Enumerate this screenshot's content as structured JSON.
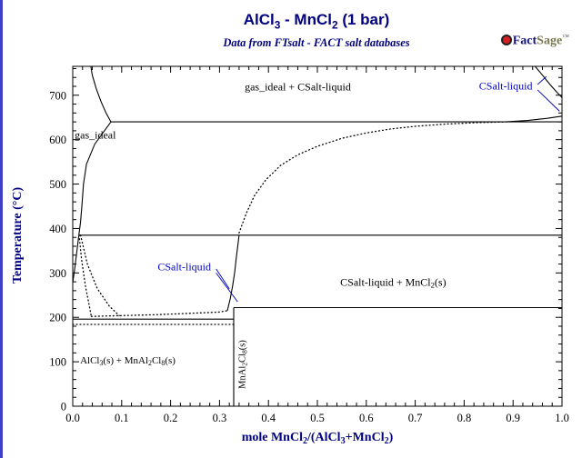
{
  "header": {
    "title_segments": [
      {
        "t": "AlCl"
      },
      {
        "t": "3",
        "sub": true
      },
      {
        "t": " - MnCl"
      },
      {
        "t": "2",
        "sub": true
      },
      {
        "t": " (1 bar)"
      }
    ],
    "title_plain": "AlCl3 - MnCl2 (1 bar)",
    "subtitle": "Data from FTsalt - FACT salt databases",
    "logo": {
      "fact": "Fact",
      "sage": "Sage",
      "tm": "™"
    }
  },
  "colors": {
    "heading": "#000080",
    "phase_label_blue": "#0000cc",
    "line": "#000000",
    "logo_red": "#d42020"
  },
  "chart_data": {
    "type": "line",
    "subtype": "phase-diagram",
    "title": "AlCl3 - MnCl2 (1 bar)",
    "subtitle": "Data from FTsalt - FACT salt databases",
    "xlabel": "mole MnCl2/(AlCl3+MnCl2)",
    "xlabel_segments": [
      {
        "t": "mole MnCl"
      },
      {
        "t": "2",
        "sub": true
      },
      {
        "t": "/(AlCl"
      },
      {
        "t": "3",
        "sub": true
      },
      {
        "t": "+MnCl"
      },
      {
        "t": "2",
        "sub": true
      },
      {
        "t": ")"
      }
    ],
    "ylabel": "Temperature (°C)",
    "xlim": [
      0,
      1
    ],
    "ylim": [
      0,
      765
    ],
    "x_ticks": [
      {
        "v": 0.0,
        "label": "0.0"
      },
      {
        "v": 0.1,
        "label": "0.1"
      },
      {
        "v": 0.2,
        "label": "0.2"
      },
      {
        "v": 0.3,
        "label": "0.3"
      },
      {
        "v": 0.4,
        "label": "0.4"
      },
      {
        "v": 0.5,
        "label": "0.5"
      },
      {
        "v": 0.6,
        "label": "0.6"
      },
      {
        "v": 0.7,
        "label": "0.7"
      },
      {
        "v": 0.8,
        "label": "0.8"
      },
      {
        "v": 0.9,
        "label": "0.9"
      },
      {
        "v": 1.0,
        "label": "1.0"
      }
    ],
    "x_minor_step": 0.02,
    "y_ticks": [
      {
        "v": 0,
        "label": "0"
      },
      {
        "v": 100,
        "label": "100"
      },
      {
        "v": 200,
        "label": "200"
      },
      {
        "v": 300,
        "label": "300"
      },
      {
        "v": 400,
        "label": "400"
      },
      {
        "v": 500,
        "label": "500"
      },
      {
        "v": 600,
        "label": "600"
      },
      {
        "v": 700,
        "label": "700"
      }
    ],
    "y_minor_step": 20,
    "invariant_temperatures_c": {
      "monotectic": 640,
      "transition": 385,
      "peritectic_mnal2cl8": 222,
      "eutectic": 196
    },
    "compound_composition_x": 0.329,
    "boundaries": [
      {
        "name": "monotectic-640",
        "style": "solid",
        "points": [
          [
            0.078,
            640
          ],
          [
            1.0,
            640
          ]
        ]
      },
      {
        "name": "isotherm-385",
        "style": "solid",
        "points": [
          [
            0.0125,
            385
          ],
          [
            1.0,
            385
          ]
        ]
      },
      {
        "name": "peritectic-222",
        "style": "solid",
        "points": [
          [
            0.329,
            222
          ],
          [
            1.0,
            222
          ]
        ]
      },
      {
        "name": "eutectic-196",
        "style": "solid",
        "points": [
          [
            0.0,
            196
          ],
          [
            0.329,
            196
          ]
        ]
      },
      {
        "name": "isotherm-184-dotted",
        "style": "dotted",
        "points": [
          [
            0.0,
            184
          ],
          [
            0.329,
            184
          ]
        ]
      },
      {
        "name": "mnal2cl8-vertical",
        "style": "solid",
        "points": [
          [
            0.329,
            0
          ],
          [
            0.329,
            222
          ]
        ]
      },
      {
        "name": "gas-boundary-upper",
        "style": "solid",
        "points": [
          [
            0.037,
            765
          ],
          [
            0.04,
            745
          ],
          [
            0.048,
            715
          ],
          [
            0.058,
            685
          ],
          [
            0.068,
            660
          ],
          [
            0.078,
            640
          ]
        ]
      },
      {
        "name": "gas-boundary-mid",
        "style": "solid",
        "points": [
          [
            0.078,
            640
          ],
          [
            0.045,
            590
          ],
          [
            0.028,
            545
          ],
          [
            0.022,
            500
          ],
          [
            0.019,
            455
          ],
          [
            0.016,
            415
          ],
          [
            0.0125,
            385
          ]
        ]
      },
      {
        "name": "gas-boundary-lower",
        "style": "solid",
        "points": [
          [
            0.0125,
            385
          ],
          [
            0.008,
            345
          ],
          [
            0.004,
            310
          ],
          [
            0.0,
            278
          ]
        ]
      },
      {
        "name": "lens-dotted-left",
        "style": "dotted",
        "points": [
          [
            0.013,
            385
          ],
          [
            0.018,
            330
          ],
          [
            0.026,
            270
          ],
          [
            0.034,
            225
          ],
          [
            0.038,
            202
          ]
        ]
      },
      {
        "name": "lens-dotted-right",
        "style": "dotted",
        "points": [
          [
            0.016,
            385
          ],
          [
            0.03,
            320
          ],
          [
            0.05,
            265
          ],
          [
            0.075,
            225
          ],
          [
            0.095,
            204
          ]
        ]
      },
      {
        "name": "liquidus-flat-dotted",
        "style": "dotted",
        "points": [
          [
            0.038,
            202
          ],
          [
            0.1,
            204
          ],
          [
            0.17,
            206
          ],
          [
            0.24,
            209
          ],
          [
            0.3,
            212
          ],
          [
            0.316,
            215
          ]
        ]
      },
      {
        "name": "liquidus-rise-solid",
        "style": "solid",
        "points": [
          [
            0.316,
            215
          ],
          [
            0.322,
            242
          ],
          [
            0.327,
            272
          ],
          [
            0.331,
            302
          ],
          [
            0.334,
            332
          ],
          [
            0.337,
            358
          ],
          [
            0.34,
            385
          ]
        ]
      },
      {
        "name": "liquidus-dotted-upper",
        "style": "dotted",
        "points": [
          [
            0.34,
            390
          ],
          [
            0.355,
            435
          ],
          [
            0.372,
            475
          ],
          [
            0.395,
            510
          ],
          [
            0.425,
            542
          ],
          [
            0.46,
            566
          ],
          [
            0.5,
            585
          ],
          [
            0.55,
            603
          ],
          [
            0.6,
            615
          ],
          [
            0.65,
            624
          ],
          [
            0.7,
            630
          ],
          [
            0.76,
            635
          ],
          [
            0.82,
            638
          ],
          [
            0.885,
            640
          ]
        ]
      },
      {
        "name": "mncl2-liquidus-solid",
        "style": "solid",
        "points": [
          [
            0.885,
            640
          ],
          [
            0.93,
            643
          ],
          [
            0.97,
            648
          ],
          [
            1.0,
            653
          ]
        ]
      },
      {
        "name": "boiling-curve-right",
        "style": "solid",
        "points": [
          [
            0.945,
            765
          ],
          [
            0.958,
            748
          ],
          [
            0.975,
            725
          ],
          [
            0.99,
            706
          ],
          [
            1.0,
            695
          ]
        ]
      }
    ],
    "leader_lines": [
      {
        "from": [
          0.95,
          724
        ],
        "to": [
          0.968,
          742
        ]
      },
      {
        "from": [
          0.95,
          712
        ],
        "to": [
          0.995,
          664
        ]
      },
      {
        "from": [
          0.293,
          309
        ],
        "to": [
          0.32,
          264
        ]
      },
      {
        "from": [
          0.293,
          300
        ],
        "to": [
          0.337,
          235
        ]
      }
    ],
    "labels": [
      {
        "id": "region-gas-ideal-plus-csalt-liquid",
        "segments": [
          {
            "t": "gas_ideal + CSalt-liquid"
          }
        ],
        "x": 0.46,
        "y": 718,
        "anchor": "middle",
        "color": "#000000",
        "size": 12
      },
      {
        "id": "region-gas-ideal",
        "segments": [
          {
            "t": "gas_ideal"
          }
        ],
        "x": 0.004,
        "y": 610,
        "anchor": "start",
        "color": "#000000",
        "size": 12
      },
      {
        "id": "label-csalt-liquid-top-right",
        "segments": [
          {
            "t": "CSalt-liquid"
          }
        ],
        "x": 0.885,
        "y": 719,
        "anchor": "middle",
        "color": "#0000cc",
        "size": 12
      },
      {
        "id": "label-csalt-liquid-middle",
        "segments": [
          {
            "t": "CSalt-liquid"
          }
        ],
        "x": 0.228,
        "y": 312,
        "anchor": "middle",
        "color": "#0000cc",
        "size": 12
      },
      {
        "id": "region-csalt-liquid-plus-mncl2",
        "segments": [
          {
            "t": "CSalt-liquid + MnCl"
          },
          {
            "t": "2",
            "sub": true
          },
          {
            "t": "(s)"
          }
        ],
        "x": 0.655,
        "y": 278,
        "anchor": "middle",
        "color": "#000000",
        "size": 12
      },
      {
        "id": "region-alcl3-plus-mnal2cl8",
        "segments": [
          {
            "t": "AlCl"
          },
          {
            "t": "3",
            "sub": true
          },
          {
            "t": "(s) + MnAl"
          },
          {
            "t": "2",
            "sub": true
          },
          {
            "t": "Cl"
          },
          {
            "t": "8",
            "sub": true
          },
          {
            "t": "(s)"
          }
        ],
        "x": 0.015,
        "y": 103,
        "anchor": "start",
        "color": "#000000",
        "size": 11
      },
      {
        "id": "label-mnal2cl8-compound",
        "segments": [
          {
            "t": "MnAl"
          },
          {
            "t": "2",
            "sub": true
          },
          {
            "t": "Cl"
          },
          {
            "t": "8",
            "sub": true
          },
          {
            "t": "(s)"
          }
        ],
        "x": 0.348,
        "y": 95,
        "anchor": "middle",
        "rotate": -90,
        "color": "#000000",
        "size": 10.5
      }
    ]
  }
}
